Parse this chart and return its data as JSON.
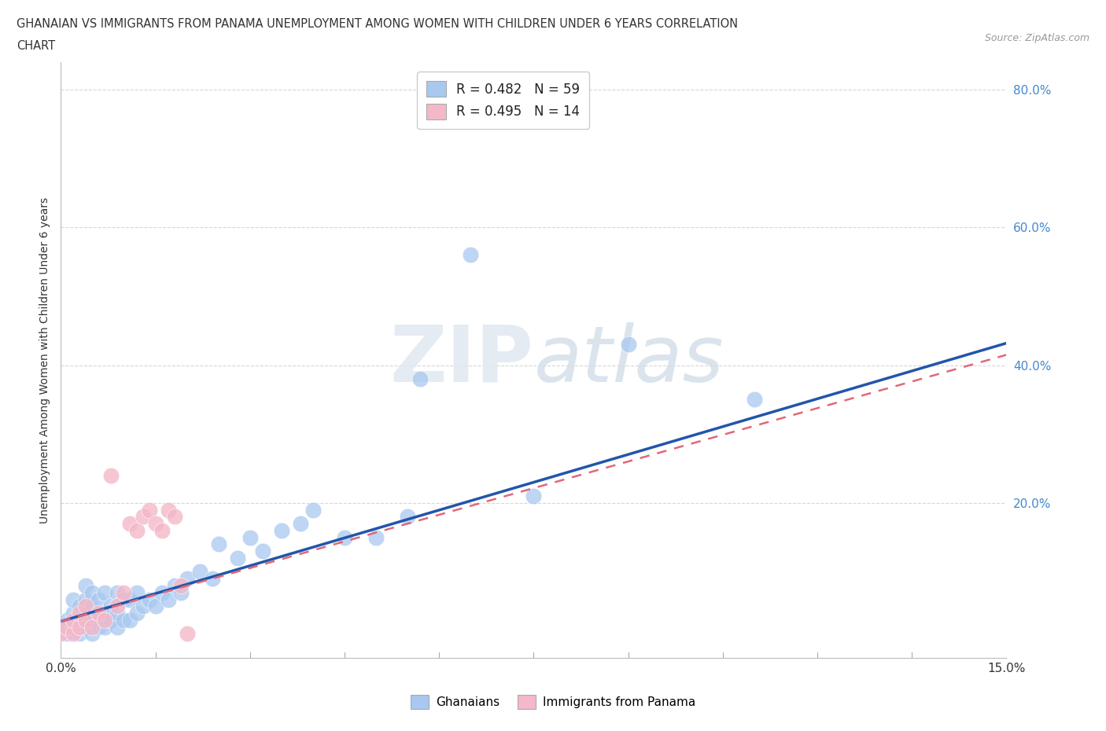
{
  "title_line1": "GHANAIAN VS IMMIGRANTS FROM PANAMA UNEMPLOYMENT AMONG WOMEN WITH CHILDREN UNDER 6 YEARS CORRELATION",
  "title_line2": "CHART",
  "source": "Source: ZipAtlas.com",
  "xmin": 0.0,
  "xmax": 0.15,
  "ymin": -0.025,
  "ymax": 0.84,
  "color_blue": "#a8c8f0",
  "color_pink": "#f4b8c8",
  "color_blue_line": "#2255aa",
  "color_pink_line": "#e06878",
  "ylabel": "Unemployment Among Women with Children Under 6 years",
  "watermark_zip": "ZIP",
  "watermark_atlas": "atlas",
  "ytick_vals": [
    0.2,
    0.4,
    0.6,
    0.8
  ],
  "ytick_labels": [
    "20.0%",
    "40.0%",
    "60.0%",
    "80.0%"
  ],
  "blue_line_x0": 0.0,
  "blue_line_y0": 0.028,
  "blue_line_x1": 0.15,
  "blue_line_y1": 0.432,
  "pink_line_x0": 0.0,
  "pink_line_y0": 0.028,
  "pink_line_x1": 0.15,
  "pink_line_y1": 0.415,
  "ghana_x": [
    0.0,
    0.001,
    0.001,
    0.002,
    0.002,
    0.002,
    0.003,
    0.003,
    0.003,
    0.004,
    0.004,
    0.004,
    0.004,
    0.005,
    0.005,
    0.005,
    0.005,
    0.006,
    0.006,
    0.006,
    0.007,
    0.007,
    0.007,
    0.008,
    0.008,
    0.009,
    0.009,
    0.009,
    0.01,
    0.01,
    0.011,
    0.011,
    0.012,
    0.012,
    0.013,
    0.014,
    0.015,
    0.016,
    0.017,
    0.018,
    0.019,
    0.02,
    0.022,
    0.024,
    0.025,
    0.028,
    0.03,
    0.032,
    0.035,
    0.038,
    0.04,
    0.045,
    0.05,
    0.055,
    0.057,
    0.065,
    0.075,
    0.09,
    0.11
  ],
  "ghana_y": [
    0.02,
    0.01,
    0.03,
    0.02,
    0.04,
    0.06,
    0.01,
    0.03,
    0.05,
    0.02,
    0.04,
    0.06,
    0.08,
    0.01,
    0.03,
    0.05,
    0.07,
    0.02,
    0.04,
    0.06,
    0.02,
    0.04,
    0.07,
    0.03,
    0.05,
    0.02,
    0.04,
    0.07,
    0.03,
    0.06,
    0.03,
    0.06,
    0.04,
    0.07,
    0.05,
    0.06,
    0.05,
    0.07,
    0.06,
    0.08,
    0.07,
    0.09,
    0.1,
    0.09,
    0.14,
    0.12,
    0.15,
    0.13,
    0.16,
    0.17,
    0.19,
    0.15,
    0.15,
    0.18,
    0.38,
    0.56,
    0.21,
    0.43,
    0.35
  ],
  "panama_x": [
    0.0,
    0.001,
    0.002,
    0.002,
    0.003,
    0.003,
    0.004,
    0.004,
    0.005,
    0.006,
    0.007,
    0.008,
    0.009,
    0.01,
    0.011,
    0.012,
    0.013,
    0.014,
    0.015,
    0.016,
    0.017,
    0.018,
    0.019,
    0.02
  ],
  "panama_y": [
    0.01,
    0.02,
    0.01,
    0.03,
    0.02,
    0.04,
    0.03,
    0.05,
    0.02,
    0.04,
    0.03,
    0.24,
    0.05,
    0.07,
    0.17,
    0.16,
    0.18,
    0.19,
    0.17,
    0.16,
    0.19,
    0.18,
    0.08,
    0.01
  ]
}
